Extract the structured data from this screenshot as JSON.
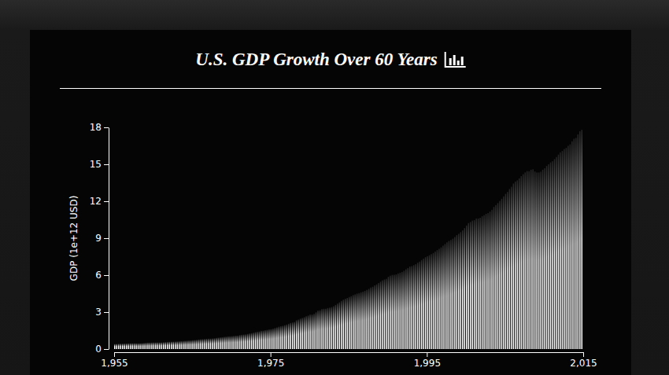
{
  "chart_data": {
    "type": "bar",
    "title": "U.S. GDP Growth Over 60 Years",
    "y_label": "GDP (1e+12 USD)",
    "color": "#ffffff",
    "grid": false,
    "xlim": [
      1955,
      2015
    ],
    "xticks": [
      {
        "value": 1955,
        "label": "1,955"
      },
      {
        "value": 1975,
        "label": "1,975"
      },
      {
        "value": 1995,
        "label": "1,995"
      },
      {
        "value": 2015,
        "label": "2,015"
      }
    ],
    "ylim": [
      0,
      18
    ],
    "yticks": [
      0,
      3,
      6,
      9,
      12,
      15,
      18
    ],
    "x": [
      1955,
      1955.25,
      1955.5,
      1955.75,
      1956,
      1956.25,
      1956.5,
      1956.75,
      1957,
      1957.25,
      1957.5,
      1957.75,
      1958,
      1958.25,
      1958.5,
      1958.75,
      1959,
      1959.25,
      1959.5,
      1959.75,
      1960,
      1960.25,
      1960.5,
      1960.75,
      1961,
      1961.25,
      1961.5,
      1961.75,
      1962,
      1962.25,
      1962.5,
      1962.75,
      1963,
      1963.25,
      1963.5,
      1963.75,
      1964,
      1964.25,
      1964.5,
      1964.75,
      1965,
      1965.25,
      1965.5,
      1965.75,
      1966,
      1966.25,
      1966.5,
      1966.75,
      1967,
      1967.25,
      1967.5,
      1967.75,
      1968,
      1968.25,
      1968.5,
      1968.75,
      1969,
      1969.25,
      1969.5,
      1969.75,
      1970,
      1970.25,
      1970.5,
      1970.75,
      1971,
      1971.25,
      1971.5,
      1971.75,
      1972,
      1972.25,
      1972.5,
      1972.75,
      1973,
      1973.25,
      1973.5,
      1973.75,
      1974,
      1974.25,
      1974.5,
      1974.75,
      1975,
      1975.25,
      1975.5,
      1975.75,
      1976,
      1976.25,
      1976.5,
      1976.75,
      1977,
      1977.25,
      1977.5,
      1977.75,
      1978,
      1978.25,
      1978.5,
      1978.75,
      1979,
      1979.25,
      1979.5,
      1979.75,
      1980,
      1980.25,
      1980.5,
      1980.75,
      1981,
      1981.25,
      1981.5,
      1981.75,
      1982,
      1982.25,
      1982.5,
      1982.75,
      1983,
      1983.25,
      1983.5,
      1983.75,
      1984,
      1984.25,
      1984.5,
      1984.75,
      1985,
      1985.25,
      1985.5,
      1985.75,
      1986,
      1986.25,
      1986.5,
      1986.75,
      1987,
      1987.25,
      1987.5,
      1987.75,
      1988,
      1988.25,
      1988.5,
      1988.75,
      1989,
      1989.25,
      1989.5,
      1989.75,
      1990,
      1990.25,
      1990.5,
      1990.75,
      1991,
      1991.25,
      1991.5,
      1991.75,
      1992,
      1992.25,
      1992.5,
      1992.75,
      1993,
      1993.25,
      1993.5,
      1993.75,
      1994,
      1994.25,
      1994.5,
      1994.75,
      1995,
      1995.25,
      1995.5,
      1995.75,
      1996,
      1996.25,
      1996.5,
      1996.75,
      1997,
      1997.25,
      1997.5,
      1997.75,
      1998,
      1998.25,
      1998.5,
      1998.75,
      1999,
      1999.25,
      1999.5,
      1999.75,
      2000,
      2000.25,
      2000.5,
      2000.75,
      2001,
      2001.25,
      2001.5,
      2001.75,
      2002,
      2002.25,
      2002.5,
      2002.75,
      2003,
      2003.25,
      2003.5,
      2003.75,
      2004,
      2004.25,
      2004.5,
      2004.75,
      2005,
      2005.25,
      2005.5,
      2005.75,
      2006,
      2006.25,
      2006.5,
      2006.75,
      2007,
      2007.25,
      2007.5,
      2007.75,
      2008,
      2008.25,
      2008.5,
      2008.75,
      2009,
      2009.25,
      2009.5,
      2009.75,
      2010,
      2010.25,
      2010.5,
      2010.75,
      2011,
      2011.25,
      2011.5,
      2011.75,
      2012,
      2012.25,
      2012.5,
      2012.75,
      2013,
      2013.25,
      2013.5,
      2013.75,
      2014,
      2014.25,
      2014.5,
      2014.75
    ],
    "values": [
      0.414,
      0.422,
      0.43,
      0.437,
      0.44,
      0.446,
      0.451,
      0.46,
      0.469,
      0.472,
      0.478,
      0.472,
      0.468,
      0.473,
      0.486,
      0.497,
      0.511,
      0.524,
      0.525,
      0.529,
      0.542,
      0.541,
      0.545,
      0.54,
      0.545,
      0.557,
      0.568,
      0.582,
      0.594,
      0.6,
      0.609,
      0.612,
      0.621,
      0.629,
      0.644,
      0.652,
      0.669,
      0.679,
      0.692,
      0.698,
      0.719,
      0.732,
      0.751,
      0.775,
      0.797,
      0.807,
      0.82,
      0.834,
      0.845,
      0.848,
      0.865,
      0.88,
      0.908,
      0.934,
      0.95,
      0.966,
      0.992,
      1.008,
      1.03,
      1.037,
      1.051,
      1.068,
      1.087,
      1.091,
      1.138,
      1.16,
      1.181,
      1.194,
      1.231,
      1.267,
      1.29,
      1.33,
      1.378,
      1.407,
      1.432,
      1.48,
      1.491,
      1.53,
      1.56,
      1.599,
      1.616,
      1.651,
      1.71,
      1.762,
      1.82,
      1.852,
      1.887,
      1.94,
      1.992,
      2.06,
      2.124,
      2.158,
      2.2,
      2.339,
      2.397,
      2.469,
      2.526,
      2.591,
      2.667,
      2.723,
      2.8,
      2.797,
      2.857,
      2.985,
      3.125,
      3.146,
      3.245,
      3.27,
      3.275,
      3.331,
      3.367,
      3.407,
      3.48,
      3.584,
      3.693,
      3.797,
      3.909,
      4.012,
      4.085,
      4.148,
      4.23,
      4.295,
      4.386,
      4.444,
      4.508,
      4.545,
      4.607,
      4.658,
      4.723,
      4.806,
      4.885,
      4.996,
      5.059,
      5.17,
      5.251,
      5.361,
      5.473,
      5.584,
      5.651,
      5.703,
      5.87,
      5.96,
      6.02,
      6.03,
      6.06,
      6.14,
      6.2,
      6.26,
      6.36,
      6.48,
      6.58,
      6.7,
      6.73,
      6.81,
      6.89,
      7.01,
      7.1,
      7.23,
      7.34,
      7.46,
      7.54,
      7.62,
      7.71,
      7.8,
      7.92,
      8.04,
      8.14,
      8.26,
      8.4,
      8.53,
      8.67,
      8.78,
      8.86,
      8.96,
      9.1,
      9.25,
      9.36,
      9.49,
      9.64,
      9.82,
      10.03,
      10.23,
      10.32,
      10.43,
      10.47,
      10.6,
      10.6,
      10.66,
      10.78,
      10.87,
      10.98,
      11.04,
      11.16,
      11.31,
      11.54,
      11.69,
      11.85,
      12.03,
      12.2,
      12.4,
      12.6,
      12.76,
      13.0,
      13.18,
      13.44,
      13.6,
      13.7,
      13.86,
      14.04,
      14.2,
      14.34,
      14.45,
      14.44,
      14.56,
      14.6,
      14.42,
      14.34,
      14.34,
      14.4,
      14.56,
      14.68,
      14.86,
      15.0,
      15.15,
      15.25,
      15.42,
      15.59,
      15.79,
      15.97,
      16.09,
      16.24,
      16.33,
      16.5,
      16.62,
      16.87,
      17.08,
      17.14,
      17.43,
      17.69,
      17.8
    ]
  }
}
